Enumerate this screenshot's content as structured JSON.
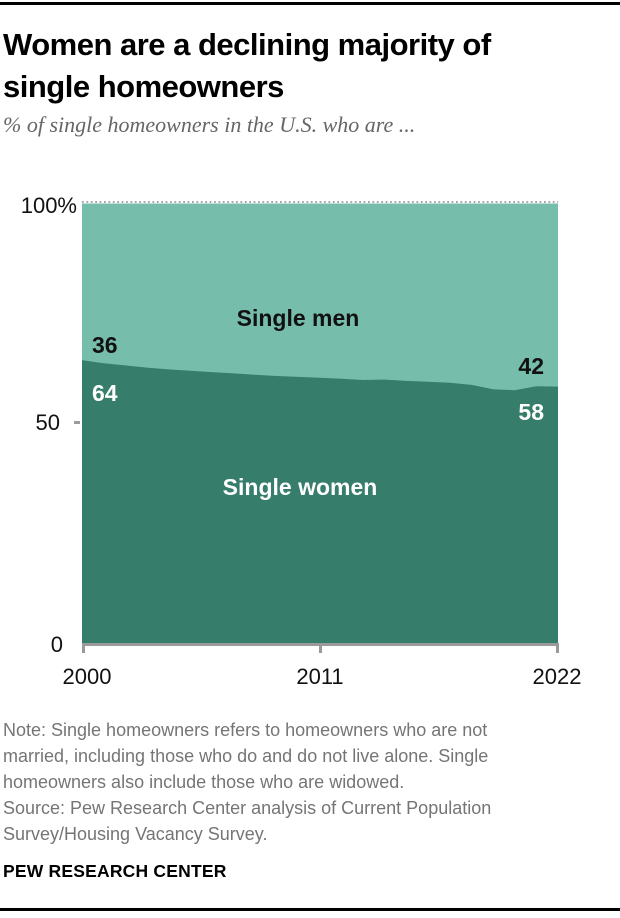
{
  "header": {
    "title": "Women are a declining majority of\nsingle homeowners",
    "subtitle": "% of single homeowners in the U.S. who are ..."
  },
  "chart": {
    "y_axis_labels": {
      "top": "100%",
      "mid": "50",
      "bottom": "0"
    },
    "x_axis_labels": {
      "start": "2000",
      "mid": "2011",
      "end": "2022"
    },
    "series_labels": {
      "men": "Single men",
      "women": "Single women"
    },
    "value_labels": {
      "men_2000": "36",
      "women_2000": "64",
      "men_2022": "42",
      "women_2022": "58"
    },
    "colors": {
      "men_area": "#77bdac",
      "women_area": "#377d6b",
      "axis": "#9a9a9a",
      "dotted_gridline": "#8a8a8a"
    }
  },
  "chart_data": {
    "type": "area",
    "stacked": true,
    "title": "Women are a declining majority of single homeowners",
    "subtitle": "% of single homeowners in the U.S. who are ...",
    "x": [
      2000,
      2001,
      2002,
      2003,
      2004,
      2005,
      2006,
      2007,
      2008,
      2009,
      2010,
      2011,
      2012,
      2013,
      2014,
      2015,
      2016,
      2017,
      2018,
      2019,
      2020,
      2021,
      2022
    ],
    "series": [
      {
        "name": "Single women",
        "color": "#377d6b",
        "values": [
          64,
          63.3,
          62.8,
          62.3,
          61.9,
          61.6,
          61.3,
          61.0,
          60.7,
          60.4,
          60.2,
          60.0,
          59.8,
          59.5,
          59.6,
          59.3,
          59.1,
          58.9,
          58.4,
          57.4,
          57.2,
          58.1,
          58.0
        ]
      },
      {
        "name": "Single men",
        "color": "#77bdac",
        "values": [
          36,
          36.7,
          37.2,
          37.7,
          38.1,
          38.4,
          38.7,
          39.0,
          39.3,
          39.6,
          39.8,
          40.0,
          40.2,
          40.5,
          40.4,
          40.7,
          40.9,
          41.1,
          41.6,
          42.6,
          42.8,
          41.9,
          42.0
        ]
      }
    ],
    "labeled_points": [
      {
        "series": "Single men",
        "x": 2000,
        "value": 36
      },
      {
        "series": "Single women",
        "x": 2000,
        "value": 64
      },
      {
        "series": "Single men",
        "x": 2022,
        "value": 42
      },
      {
        "series": "Single women",
        "x": 2022,
        "value": 58
      }
    ],
    "ylim": [
      0,
      100
    ],
    "y_tick_labels": [
      "100%",
      "50",
      "0"
    ],
    "x_tick_labels": [
      "2000",
      "2011",
      "2022"
    ],
    "grid": "dotted line at 100% only",
    "legend_position": "labels inside areas"
  },
  "footer": {
    "note": "Note: Single homeowners refers to homeowners who are not\nmarried, including those who do and do not live alone. Single\nhomeowners also include those who are widowed.\nSource: Pew Research Center analysis of Current Population\nSurvey/Housing Vacancy Survey.",
    "brand": "PEW RESEARCH CENTER"
  }
}
